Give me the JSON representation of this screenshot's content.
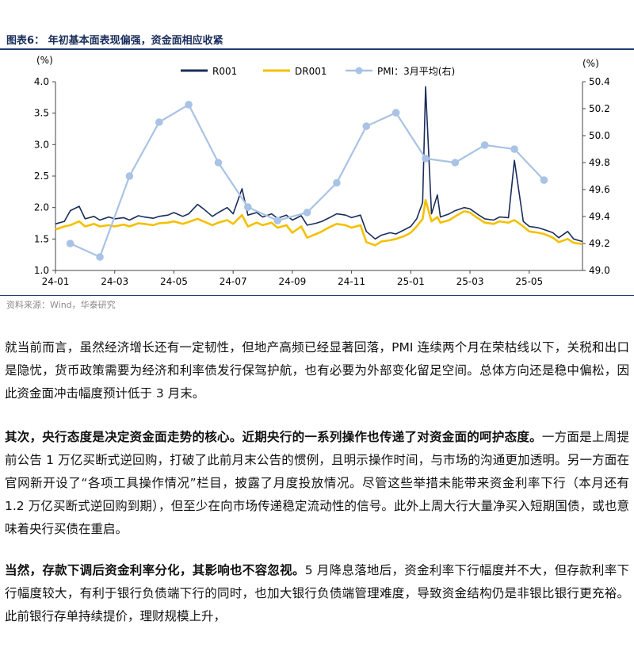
{
  "figure": {
    "title": "图表6：  年初基本面表现偏强，资金面相应收紧",
    "source": "资料来源：Wind，华泰研究"
  },
  "chart_data": {
    "type": "line",
    "left_axis_unit": "(%)",
    "right_axis_unit": "(%)",
    "ylim_left": [
      1.0,
      4.0
    ],
    "yticks_left": [
      "4.0",
      "3.5",
      "3.0",
      "2.5",
      "2.0",
      "1.5",
      "1.0"
    ],
    "ylim_right": [
      49.0,
      50.4
    ],
    "yticks_right": [
      "50.4",
      "50.2",
      "50.0",
      "49.8",
      "49.6",
      "49.4",
      "49.2",
      "49.0"
    ],
    "x_tick_labels": [
      "24-01",
      "24-03",
      "24-05",
      "24-07",
      "24-09",
      "24-11",
      "25-01",
      "25-03",
      "25-05"
    ],
    "x_range_months": [
      0,
      17.8
    ],
    "legend": [
      "R001",
      "DR001",
      "PMI：3月平均(右)"
    ],
    "colors": {
      "R001": "#1a2d5a",
      "DR001": "#f5c000",
      "PMI": "#a9c3e4"
    },
    "series": [
      {
        "name": "R001",
        "axis": "left",
        "x": [
          0,
          0.3,
          0.5,
          0.8,
          1.0,
          1.3,
          1.5,
          1.8,
          2.0,
          2.3,
          2.5,
          2.8,
          3.0,
          3.3,
          3.5,
          3.8,
          4.0,
          4.3,
          4.5,
          4.8,
          5.0,
          5.3,
          5.5,
          5.8,
          6.0,
          6.3,
          6.5,
          6.8,
          7.0,
          7.3,
          7.5,
          7.8,
          8.0,
          8.3,
          8.5,
          8.8,
          9.0,
          9.3,
          9.5,
          9.8,
          10.0,
          10.3,
          10.5,
          10.8,
          11.0,
          11.3,
          11.5,
          11.8,
          12.0,
          12.2,
          12.4,
          12.5,
          12.7,
          12.9,
          13.0,
          13.3,
          13.5,
          13.8,
          14.0,
          14.3,
          14.5,
          14.8,
          15.0,
          15.3,
          15.5,
          15.8,
          16.0,
          16.3,
          16.5,
          16.8,
          17.0,
          17.3,
          17.5,
          17.8
        ],
        "values": [
          1.74,
          1.78,
          1.95,
          2.02,
          1.82,
          1.86,
          1.8,
          1.85,
          1.82,
          1.84,
          1.8,
          1.87,
          1.85,
          1.83,
          1.86,
          1.88,
          1.92,
          1.86,
          1.9,
          2.05,
          1.98,
          1.86,
          1.92,
          2.0,
          1.9,
          2.3,
          1.88,
          1.92,
          1.85,
          1.9,
          1.83,
          1.88,
          1.8,
          1.87,
          1.72,
          1.75,
          1.78,
          1.85,
          1.9,
          1.88,
          1.84,
          1.88,
          1.62,
          1.5,
          1.56,
          1.6,
          1.58,
          1.65,
          1.7,
          1.82,
          2.08,
          3.92,
          1.9,
          2.2,
          1.85,
          1.9,
          1.95,
          2.0,
          1.98,
          1.88,
          1.82,
          1.8,
          1.85,
          1.84,
          2.75,
          1.78,
          1.7,
          1.68,
          1.65,
          1.6,
          1.52,
          1.62,
          1.5,
          1.46
        ]
      },
      {
        "name": "DR001",
        "axis": "left",
        "x": [
          0,
          0.3,
          0.5,
          0.8,
          1.0,
          1.3,
          1.5,
          1.8,
          2.0,
          2.3,
          2.5,
          2.8,
          3.0,
          3.3,
          3.5,
          3.8,
          4.0,
          4.3,
          4.5,
          4.8,
          5.0,
          5.3,
          5.5,
          5.8,
          6.0,
          6.3,
          6.5,
          6.8,
          7.0,
          7.3,
          7.5,
          7.8,
          8.0,
          8.3,
          8.5,
          8.8,
          9.0,
          9.3,
          9.5,
          9.8,
          10.0,
          10.3,
          10.5,
          10.8,
          11.0,
          11.3,
          11.5,
          11.8,
          12.0,
          12.2,
          12.4,
          12.5,
          12.7,
          12.9,
          13.0,
          13.3,
          13.5,
          13.8,
          14.0,
          14.3,
          14.5,
          14.8,
          15.0,
          15.3,
          15.5,
          15.8,
          16.0,
          16.3,
          16.5,
          16.8,
          17.0,
          17.3,
          17.5,
          17.8
        ],
        "values": [
          1.65,
          1.7,
          1.72,
          1.78,
          1.7,
          1.74,
          1.7,
          1.72,
          1.7,
          1.73,
          1.7,
          1.75,
          1.74,
          1.72,
          1.75,
          1.76,
          1.78,
          1.74,
          1.77,
          1.82,
          1.78,
          1.72,
          1.76,
          1.8,
          1.74,
          1.88,
          1.7,
          1.76,
          1.72,
          1.76,
          1.68,
          1.72,
          1.6,
          1.7,
          1.52,
          1.58,
          1.62,
          1.7,
          1.74,
          1.72,
          1.68,
          1.72,
          1.45,
          1.4,
          1.46,
          1.48,
          1.5,
          1.55,
          1.6,
          1.7,
          1.82,
          2.12,
          1.78,
          1.85,
          1.76,
          1.8,
          1.86,
          1.94,
          1.92,
          1.82,
          1.76,
          1.74,
          1.78,
          1.76,
          1.8,
          1.7,
          1.62,
          1.6,
          1.58,
          1.52,
          1.45,
          1.5,
          1.44,
          1.42
        ]
      },
      {
        "name": "PMI：3月平均(右)",
        "axis": "right",
        "x": [
          0.5,
          1.5,
          2.5,
          3.5,
          4.5,
          5.5,
          6.5,
          7.5,
          8.5,
          9.5,
          10.5,
          11.5,
          12.5,
          13.5,
          14.5,
          15.5,
          16.5,
          17.5
        ],
        "values": [
          49.2,
          49.1,
          49.7,
          50.1,
          50.23,
          49.8,
          49.47,
          49.37,
          49.43,
          49.65,
          50.07,
          50.17,
          49.83,
          49.8,
          49.93,
          49.9,
          49.67,
          null
        ]
      }
    ]
  },
  "paragraph1": {
    "text": "就当前而言，虽然经济增长还有一定韧性，但地产高频已经显著回落，PMI 连续两个月在荣枯线以下，关税和出口是隐忧，货币政策需要为经济和利率债发行保驾护航，也有必要为外部变化留足空间。总体方向还是稳中偏松，因此资金面冲击幅度预计低于 3 月末。"
  },
  "paragraph2": {
    "lead": "其次，央行态度是决定资金面走势的核心。近期央行的一系列操作也传递了对资金面的呵护态度。",
    "text": "一方面是上周提前公告 1 万亿买断式逆回购，打破了此前月末公告的惯例，且明示操作时间，与市场的沟通更加透明。另一方面在官网新开设了“各项工具操作情况”栏目，披露了月度投放情况。尽管这些举措未能带来资金利率下行（本月还有 1.2 万亿买断式逆回购到期），但至少在向市场传递稳定流动性的信号。此外上周大行大量净买入短期国债，或也意味着央行买债在重启。"
  },
  "paragraph3": {
    "lead": "当然，存款下调后资金利率分化，其影响也不容忽视。",
    "text": "5 月降息落地后，资金利率下行幅度并不大，但存款利率下行幅度较大，有利于银行负债端下行的同时，也加大银行负债端管理难度，导致资金结构仍是非银比银行更充裕。此前银行存单持续提价，理财规模上升，"
  }
}
